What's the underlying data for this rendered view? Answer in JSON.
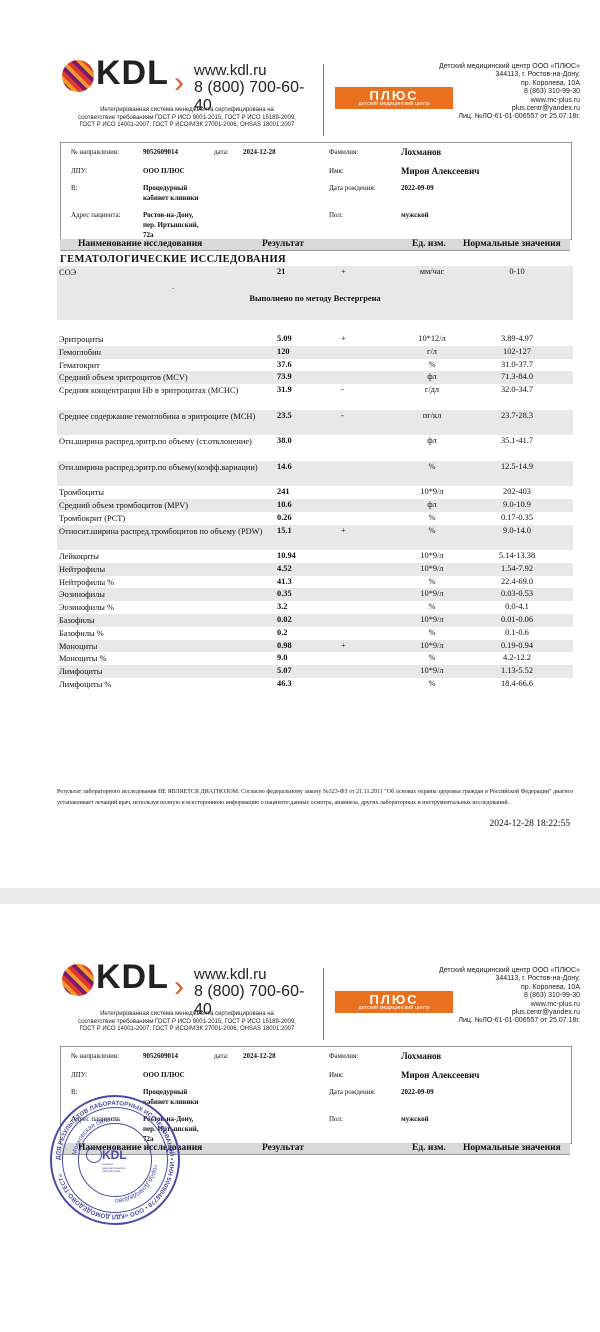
{
  "header": {
    "brand": "KDL",
    "website": "www.kdl.ru",
    "phone": "8 (800) 700-60-40",
    "cert_lines": [
      "Интегрированная система менеджмента сертифицирована на",
      "соответствие требованиям ГОСТ Р ИСО 9001-2015, ГОСТ Р ИСО 15189-2009,",
      "ГОСТ Р ИСО 14001-2007, ГОСТ Р ИСО/МЭК 27001-2006, OHSAS 18001:2007"
    ],
    "plus_logo": "ПЛЮС",
    "plus_sub": "детский медицинский центр",
    "org_lines": [
      "Детский медицинский центр ООО «ПЛЮС»",
      "344113, г. Ростов-на-Дону,",
      "пр. Королева, 10А",
      "8 (863) 310-99-30",
      "www.mc-plus.ru",
      "plus.centr@yandex.ru",
      "Лиц. №ЛО-61-01-006557 от 25.07.18г."
    ],
    "accent_color": "#e9701f"
  },
  "info": {
    "referral_label": "№ направления:",
    "referral_value": "9052609014",
    "date_label": "дата:",
    "date_value": "2024-12-28",
    "lpu_label": "ЛПУ:",
    "lpu_value": "ООО ПЛЮС",
    "in_label": "В:",
    "in_value_1": "Процедурный",
    "in_value_2": "кабинет клиники",
    "address_label": "Адрес пациента:",
    "address_1": "Ростов-на-Дону,",
    "address_2": "пер. Иртышский,",
    "address_3": "72а",
    "surname_label": "Фамилия:",
    "surname_value": "Лохманов",
    "name_label": "Имя:",
    "name_value": "Мирон Алексеевич",
    "birth_label": "Дата рождения:",
    "birth_value": "2022-09-09",
    "sex_label": "Пол:",
    "sex_value": "мужской"
  },
  "columns": {
    "name": "Наименование исследования",
    "result": "Результат",
    "unit": "Ед. изм.",
    "norm": "Нормальные значения"
  },
  "section_title": "ГЕМАТОЛОГИЧЕСКИЕ ИССЛЕДОВАНИЯ",
  "esr": {
    "name": "СОЭ",
    "result": "21",
    "flag": "+",
    "unit": "мм/час",
    "norm": "0-10",
    "dot": ".",
    "note": "Выполнено по методу Вестергрена"
  },
  "rows": [
    {
      "name": "Эритроциты",
      "result": "5.09",
      "flag": "+",
      "unit": "10*12/л",
      "norm": "3.89-4.97",
      "lines": 1,
      "alt": false
    },
    {
      "name": "Гемоглобин",
      "result": "120",
      "flag": "",
      "unit": "г/л",
      "norm": "102-127",
      "lines": 1,
      "alt": true
    },
    {
      "name": "Гематокрит",
      "result": "37.6",
      "flag": "",
      "unit": "%",
      "norm": "31.0-37.7",
      "lines": 1,
      "alt": false
    },
    {
      "name": "Средний объем эритроцитов (MCV)",
      "result": "73.9",
      "flag": "",
      "unit": "фл",
      "norm": "71.3-84.0",
      "lines": 1,
      "alt": true
    },
    {
      "name": "Средняя концентрация Hb в эритроцитах (MCHC)",
      "result": "31.9",
      "flag": "-",
      "unit": "г/дл",
      "norm": "32.0-34.7",
      "lines": 2,
      "alt": false
    },
    {
      "name": "Среднее содержание гемоглобина в эритроците (MCH)",
      "result": "23.5",
      "flag": "-",
      "unit": "пг/кл",
      "norm": "23.7-28.3",
      "lines": 2,
      "alt": true
    },
    {
      "name": "Отн.ширина распред.эритр.по объему (ст.отклонение)",
      "result": "38.0",
      "flag": "",
      "unit": "фл",
      "norm": "35.1-41.7",
      "lines": 2,
      "alt": false
    },
    {
      "name": "Отн.ширина распред.эритр.по объему(коэфф.вариации)",
      "result": "14.6",
      "flag": "",
      "unit": "%",
      "norm": "12.5-14.9",
      "lines": 2,
      "alt": true
    },
    {
      "name": "Тромбоциты",
      "result": "241",
      "flag": "",
      "unit": "10*9/л",
      "norm": "202-403",
      "lines": 1,
      "alt": false
    },
    {
      "name": "Средний объем тромбоцитов (MPV)",
      "result": "10.6",
      "flag": "",
      "unit": "фл",
      "norm": "9.0-10.9",
      "lines": 1,
      "alt": true
    },
    {
      "name": "Тромбокрит (PCT)",
      "result": "0.26",
      "flag": "",
      "unit": "%",
      "norm": "0.17-0.35",
      "lines": 1,
      "alt": false
    },
    {
      "name": "Относит.ширина распред.тромбоцитов по объему (PDW)",
      "result": "15.1",
      "flag": "+",
      "unit": "%",
      "norm": "9.0-14.0",
      "lines": 2,
      "alt": true
    },
    {
      "name": "Лейкоциты",
      "result": "10.94",
      "flag": "",
      "unit": "10*9/л",
      "norm": "5.14-13.38",
      "lines": 1,
      "alt": false
    },
    {
      "name": "Нейтрофилы",
      "result": "4.52",
      "flag": "",
      "unit": "10*9/л",
      "norm": "1.54-7.92",
      "lines": 1,
      "alt": true
    },
    {
      "name": "Нейтрофилы %",
      "result": "41.3",
      "flag": "",
      "unit": "%",
      "norm": "22.4-69.0",
      "lines": 1,
      "alt": false
    },
    {
      "name": "Эозинофилы",
      "result": "0.35",
      "flag": "",
      "unit": "10*9/л",
      "norm": "0.03-0.53",
      "lines": 1,
      "alt": true
    },
    {
      "name": "Эозинофилы %",
      "result": "3.2",
      "flag": "",
      "unit": "%",
      "norm": "0.0-4.1",
      "lines": 1,
      "alt": false
    },
    {
      "name": "Базофилы",
      "result": "0.02",
      "flag": "",
      "unit": "10*9/л",
      "norm": "0.01-0.06",
      "lines": 1,
      "alt": true
    },
    {
      "name": "Базофилы %",
      "result": "0.2",
      "flag": "",
      "unit": "%",
      "norm": "0.1-0.6",
      "lines": 1,
      "alt": false
    },
    {
      "name": "Моноциты",
      "result": "0.98",
      "flag": "+",
      "unit": "10*9/л",
      "norm": "0.19-0.94",
      "lines": 1,
      "alt": true
    },
    {
      "name": "Моноциты %",
      "result": "9.0",
      "flag": "",
      "unit": "%",
      "norm": "4.2-12.2",
      "lines": 1,
      "alt": false
    },
    {
      "name": "Лимфоциты",
      "result": "5.07",
      "flag": "",
      "unit": "10*9/л",
      "norm": "1.13-5.52",
      "lines": 1,
      "alt": true
    },
    {
      "name": "Лимфоциты %",
      "result": "46.3",
      "flag": "",
      "unit": "%",
      "norm": "18.4-66.6",
      "lines": 1,
      "alt": false
    }
  ],
  "footer_text": "Результат лабораторного исследования НЕ ЯВЛЯЕТСЯ ДИАГНОЗОМ. Согласно федеральному закону №323-ФЗ от 21.11.2011 \"Об основах охраны здоровья граждан в Российской Федерации\" диагноз устанавливает лечащий врач, используя полную и всестороннюю информацию о пациенте:данные осмотра, анамнеза, других лабораторных и инструментальных исследований.",
  "timestamp": "2024-12-28 18:22:55",
  "stamp": {
    "outer_text": "ДЛЯ РЕЗУЛЬТАТОВ ЛАБОРАТОРНЫХ ИССЛЕДОВАНИЙ • ИНН 5009046778 • ООО «КДЛ ДОМОДЕДОВО-ТЕСТ»",
    "region": "Московская область",
    "city": "город Домодедово",
    "logo": "KDL",
    "logo_sub": "клинико диагностические лаборатории",
    "color": "#4a4ca6"
  }
}
